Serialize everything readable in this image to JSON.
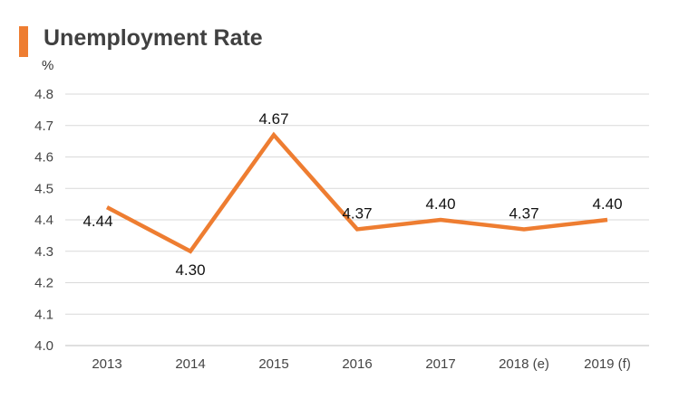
{
  "chart_data": {
    "type": "line",
    "title": "Unemployment Rate",
    "ylabel": "%",
    "xlabel": "",
    "categories": [
      "2013",
      "2014",
      "2015",
      "2016",
      "2017",
      "2018 (e)",
      "2019 (f)"
    ],
    "series": [
      {
        "values": [
          4.44,
          4.3,
          4.67,
          4.37,
          4.4,
          4.37,
          4.4
        ]
      }
    ],
    "data_labels": [
      "4.44",
      "4.30",
      "4.67",
      "4.37",
      "4.40",
      "4.37",
      "4.40"
    ],
    "yticks": [
      "4.0",
      "4.1",
      "4.2",
      "4.3",
      "4.4",
      "4.5",
      "4.6",
      "4.7",
      "4.8"
    ],
    "ylim": [
      4.0,
      4.8
    ],
    "grid": true,
    "legend": "none",
    "colors": {
      "line": "#ee7d31",
      "accent": "#ee7d31",
      "grid": "#d9d9d9"
    }
  }
}
